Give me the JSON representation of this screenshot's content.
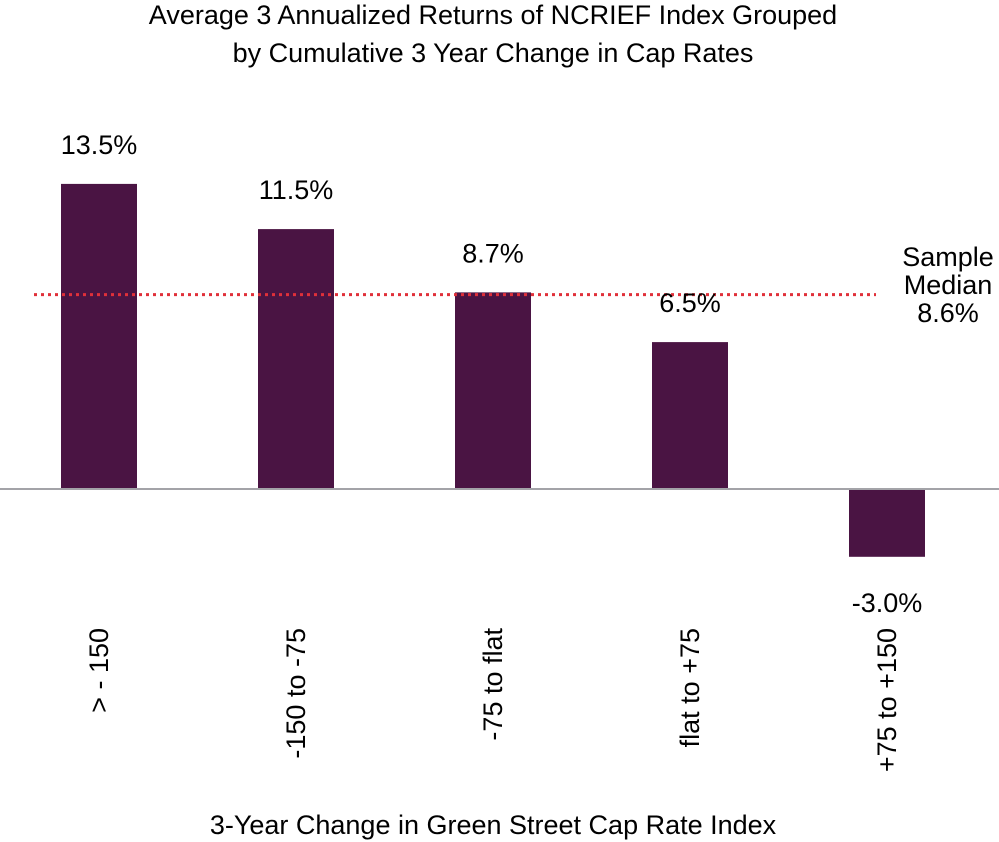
{
  "chart_data": {
    "type": "bar",
    "title": [
      "Average 3 Annualized Returns of NCRIEF Index Grouped",
      "by Cumulative 3 Year Change in Cap Rates"
    ],
    "xlabel": "3-Year Change in Green Street Cap Rate Index",
    "ylabel": "",
    "categories": [
      "> - 150",
      "-150 to -75",
      "-75 to flat",
      "flat to +75",
      "+75 to +150"
    ],
    "values": [
      13.5,
      11.5,
      8.7,
      6.5,
      -3.0
    ],
    "data_labels": [
      "13.5%",
      "11.5%",
      "8.7%",
      "6.5%",
      "-3.0%"
    ],
    "ylim": [
      -3.0,
      13.5
    ],
    "grid": false,
    "legend": "none",
    "reference_line": {
      "value": 8.6,
      "label": [
        "Sample",
        "Median",
        "8.6%"
      ],
      "style": "dotted",
      "color": "#e0303a"
    },
    "colors": {
      "bar": "#4a1443",
      "axis": "#a3a3a8"
    }
  }
}
